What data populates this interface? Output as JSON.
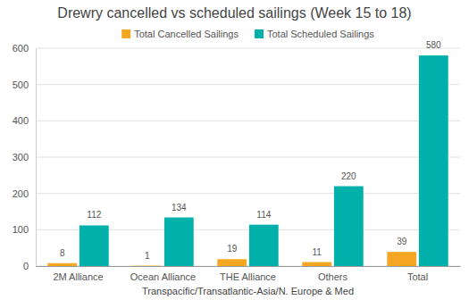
{
  "chart_data": {
    "type": "bar",
    "title": "Drewry cancelled vs scheduled sailings (Week 15 to 18)",
    "x_label": "Transpacific/Transatlantic-Asia/N. Europe & Med",
    "categories": [
      "2M Alliance",
      "Ocean Alliance",
      "THE Alliance",
      "Others",
      "Total"
    ],
    "series": [
      {
        "name": "Total Cancelled Sailings",
        "color": "#f5a623",
        "values": [
          8,
          1,
          19,
          11,
          39
        ]
      },
      {
        "name": "Total Scheduled Sailings",
        "color": "#00b0aa",
        "values": [
          112,
          134,
          114,
          220,
          580
        ]
      }
    ],
    "ylim": [
      0,
      600
    ],
    "yticks": [
      0,
      100,
      200,
      300,
      400,
      500,
      600
    ],
    "grid": true,
    "data_labels": true,
    "legend": "top"
  }
}
